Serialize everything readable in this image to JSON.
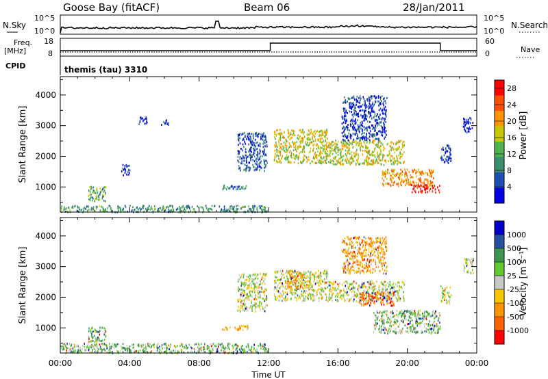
{
  "header": {
    "station": "Goose Bay (fitACF)",
    "beam": "Beam 06",
    "date": "28/Jan/2011"
  },
  "noise_panel": {
    "left_label": "N.Sky",
    "right_label": "N.Search",
    "left_ticks": [
      "10^5",
      "10^0"
    ],
    "right_ticks": [
      "10^5",
      "10^0"
    ]
  },
  "freq_panel": {
    "left_label_line1": "Freq.",
    "left_label_line2": "[MHz]",
    "right_label": "Nave",
    "left_ticks": [
      "18",
      "8"
    ],
    "right_ticks": [
      "60",
      "0"
    ]
  },
  "cpid": {
    "label": "CPID",
    "value": "themis (tau) 3310"
  },
  "colors": {
    "power_scale": [
      "#0000e0",
      "#1e50b4",
      "#3c8c6e",
      "#50b450",
      "#c8c800",
      "#ff9600",
      "#ff5000",
      "#ff0000"
    ],
    "velocity_scale": [
      "#ff0000",
      "#ff6400",
      "#ff9600",
      "#fac800",
      "#c8c8c8",
      "#64c832",
      "#3c9650",
      "#2850a0",
      "#0000c8"
    ]
  },
  "chart_data": [
    {
      "type": "heatmap",
      "title": "",
      "xlabel": "",
      "ylabel": "Slant Range [km]",
      "x_ticks": [
        "00:00",
        "04:00",
        "08:00",
        "12:00",
        "16:00",
        "20:00",
        "00:00"
      ],
      "y_ticks": [
        "1000",
        "2000",
        "3000",
        "4000"
      ],
      "xlim_hours": [
        0,
        24
      ],
      "ylim_km": [
        180,
        4600
      ],
      "colorbar": {
        "label": "Power [dB]",
        "ticks": [
          "4",
          "8",
          "12",
          "16",
          "20",
          "24",
          "28"
        ],
        "range": [
          0,
          30
        ]
      },
      "regions": [
        {
          "t0": 0.0,
          "t1": 11.9,
          "r0": 200,
          "r1": 420,
          "level": 0.35
        },
        {
          "t0": 1.6,
          "t1": 2.6,
          "r0": 550,
          "r1": 1050,
          "level": 0.4
        },
        {
          "t0": 3.5,
          "t1": 4.0,
          "r0": 1400,
          "r1": 1750,
          "level": 0.1
        },
        {
          "t0": 4.5,
          "t1": 5.0,
          "r0": 3050,
          "r1": 3350,
          "level": 0.1
        },
        {
          "t0": 5.8,
          "t1": 6.2,
          "r0": 3050,
          "r1": 3250,
          "level": 0.1
        },
        {
          "t0": 9.3,
          "t1": 10.8,
          "r0": 950,
          "r1": 1100,
          "level": 0.25
        },
        {
          "t0": 10.2,
          "t1": 11.9,
          "r0": 1550,
          "r1": 2800,
          "level": 0.2
        },
        {
          "t0": 12.3,
          "t1": 15.4,
          "r0": 1800,
          "r1": 2900,
          "level": 0.55
        },
        {
          "t0": 15.4,
          "t1": 19.8,
          "r0": 1750,
          "r1": 2550,
          "level": 0.55
        },
        {
          "t0": 16.2,
          "t1": 18.8,
          "r0": 2550,
          "r1": 4000,
          "level": 0.15
        },
        {
          "t0": 18.5,
          "t1": 21.5,
          "r0": 1050,
          "r1": 1600,
          "level": 0.7
        },
        {
          "t0": 20.2,
          "t1": 21.9,
          "r0": 850,
          "r1": 1100,
          "level": 0.95
        },
        {
          "t0": 21.9,
          "t1": 22.5,
          "r0": 1800,
          "r1": 2400,
          "level": 0.15
        },
        {
          "t0": 23.2,
          "t1": 23.8,
          "r0": 2800,
          "r1": 3300,
          "level": 0.1
        }
      ]
    },
    {
      "type": "heatmap",
      "title": "",
      "xlabel": "Time UT",
      "ylabel": "Slant Range [km]",
      "x_ticks": [
        "00:00",
        "04:00",
        "08:00",
        "12:00",
        "16:00",
        "20:00",
        "00:00"
      ],
      "y_ticks": [
        "1000",
        "2000",
        "3000",
        "4000"
      ],
      "xlim_hours": [
        0,
        24
      ],
      "ylim_km": [
        180,
        4600
      ],
      "colorbar": {
        "label": "Velocity [m s⁻¹]",
        "ticks": [
          "1000",
          "500",
          "100",
          "25",
          "-25",
          "-100",
          "-500",
          "-1000"
        ],
        "range": [
          -1000,
          1000
        ]
      },
      "regions": [
        {
          "t0": 0.0,
          "t1": 11.9,
          "r0": 200,
          "r1": 520,
          "level": 0.62
        },
        {
          "t0": 1.6,
          "t1": 2.6,
          "r0": 550,
          "r1": 1050,
          "level": 0.68
        },
        {
          "t0": 9.3,
          "t1": 10.8,
          "r0": 950,
          "r1": 1100,
          "level": 0.3
        },
        {
          "t0": 10.2,
          "t1": 11.9,
          "r0": 1550,
          "r1": 2800,
          "level": 0.5
        },
        {
          "t0": 12.3,
          "t1": 15.4,
          "r0": 1900,
          "r1": 2900,
          "level": 0.5
        },
        {
          "t0": 13.0,
          "t1": 14.0,
          "r0": 2250,
          "r1": 2900,
          "level": 0.3
        },
        {
          "t0": 15.4,
          "t1": 19.8,
          "r0": 1900,
          "r1": 2550,
          "level": 0.5
        },
        {
          "t0": 17.2,
          "t1": 19.2,
          "r0": 1750,
          "r1": 2200,
          "level": 0.15
        },
        {
          "t0": 16.2,
          "t1": 18.8,
          "r0": 2800,
          "r1": 4000,
          "level": 0.3
        },
        {
          "t0": 18.0,
          "t1": 21.9,
          "r0": 850,
          "r1": 1600,
          "level": 0.64
        },
        {
          "t0": 21.9,
          "t1": 22.5,
          "r0": 1800,
          "r1": 2400,
          "level": 0.5
        },
        {
          "t0": 23.2,
          "t1": 23.8,
          "r0": 2800,
          "r1": 3300,
          "level": 0.5
        }
      ]
    }
  ]
}
